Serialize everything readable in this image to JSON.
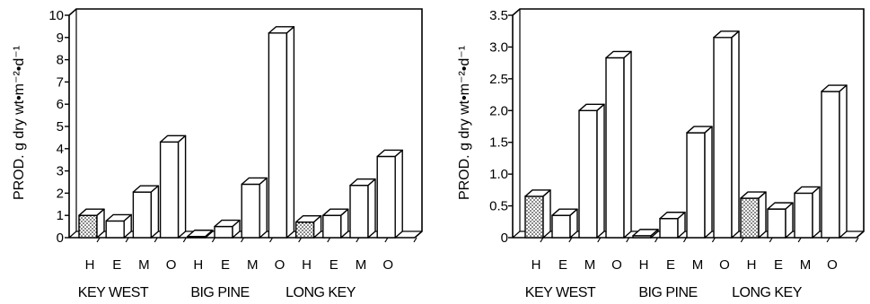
{
  "chart_data": [
    {
      "type": "bar",
      "ylabel": "PROD. g dry wt•m⁻²•d⁻¹",
      "ylim": [
        0,
        10
      ],
      "yticks": [
        "0",
        "1",
        "2",
        "3",
        "4",
        "5",
        "6",
        "7",
        "8",
        "9",
        "10"
      ],
      "categories": [
        "H",
        "E",
        "M",
        "O",
        "H",
        "E",
        "M",
        "O",
        "H",
        "E",
        "M",
        "O"
      ],
      "groups": [
        "KEY WEST",
        "BIG PINE",
        "LONG KEY"
      ],
      "values": [
        1.0,
        0.75,
        2.05,
        4.3,
        0.05,
        0.5,
        2.4,
        9.2,
        0.7,
        1.0,
        2.35,
        3.65
      ],
      "stippled": [
        true,
        false,
        false,
        false,
        false,
        false,
        false,
        false,
        true,
        false,
        false,
        false
      ],
      "grid": false,
      "style": "3d-bar"
    },
    {
      "type": "bar",
      "ylabel": "PROD. g dry wt•m⁻²•d⁻¹",
      "ylim": [
        0,
        3.5
      ],
      "yticks": [
        "0",
        "0.5",
        "1.0",
        "1.5",
        "2.0",
        "2.5",
        "3.0",
        "3.5"
      ],
      "categories": [
        "H",
        "E",
        "M",
        "O",
        "H",
        "E",
        "M",
        "O",
        "H",
        "E",
        "M",
        "O"
      ],
      "groups": [
        "KEY WEST",
        "BIG PINE",
        "LONG KEY"
      ],
      "values": [
        0.65,
        0.35,
        2.0,
        2.83,
        0.03,
        0.3,
        1.65,
        3.15,
        0.62,
        0.45,
        0.7,
        2.3
      ],
      "stippled": [
        true,
        false,
        false,
        false,
        false,
        false,
        false,
        false,
        true,
        false,
        false,
        false
      ],
      "grid": false,
      "style": "3d-bar"
    }
  ]
}
